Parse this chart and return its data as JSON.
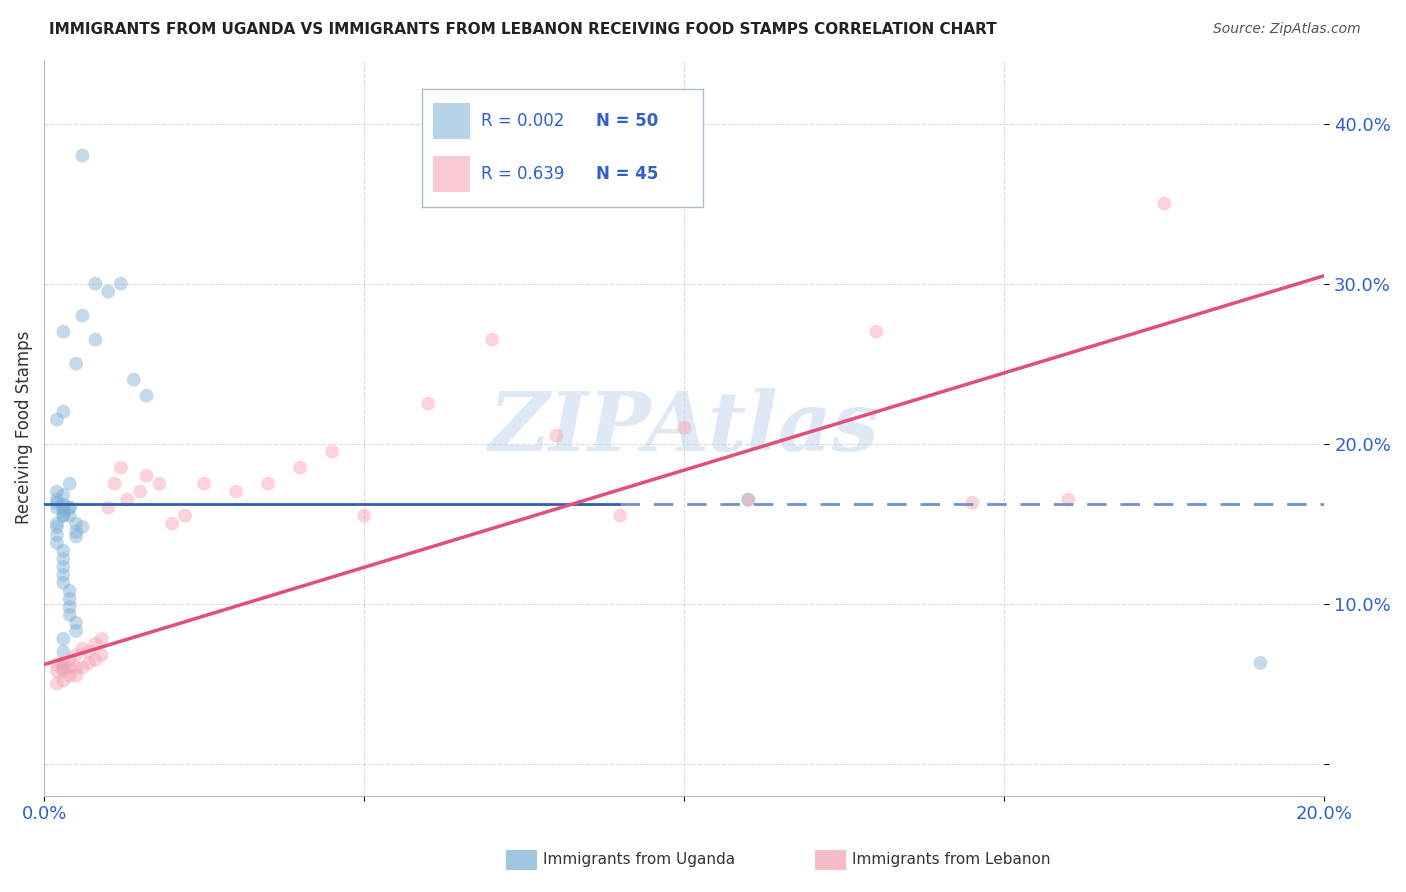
{
  "title": "IMMIGRANTS FROM UGANDA VS IMMIGRANTS FROM LEBANON RECEIVING FOOD STAMPS CORRELATION CHART",
  "source": "Source: ZipAtlas.com",
  "ylabel": "Receiving Food Stamps",
  "xlim": [
    0.0,
    0.2
  ],
  "ylim": [
    -0.02,
    0.44
  ],
  "ytick_vals": [
    0.0,
    0.1,
    0.2,
    0.3,
    0.4
  ],
  "ytick_labels": [
    "",
    "10.0%",
    "20.0%",
    "30.0%",
    "40.0%"
  ],
  "xtick_vals": [
    0.0,
    0.05,
    0.1,
    0.15,
    0.2
  ],
  "xtick_labels": [
    "0.0%",
    "",
    "",
    "",
    "20.0%"
  ],
  "uganda_color": "#7bafd4",
  "lebanon_color": "#f4a0b0",
  "trend_uganda_solid_color": "#3060b0",
  "trend_uganda_dash_color": "#7090d0",
  "trend_lebanon_color": "#e0507a",
  "watermark_text": "ZIPAtlas",
  "watermark_color": "#c5d8ee",
  "legend_r_val_color": "#3060cc",
  "legend_n_val_color": "#3060cc",
  "legend_uganda_r": "0.002",
  "legend_uganda_n": "50",
  "legend_lebanon_r": "0.639",
  "legend_lebanon_n": "45",
  "bg_color": "#ffffff",
  "grid_color": "#cccccc",
  "dot_size": 100,
  "dot_alpha": 0.45,
  "uganda_x": [
    0.006,
    0.006,
    0.008,
    0.01,
    0.012,
    0.008,
    0.014,
    0.016,
    0.005,
    0.003,
    0.002,
    0.003,
    0.003,
    0.002,
    0.004,
    0.002,
    0.002,
    0.002,
    0.003,
    0.003,
    0.003,
    0.004,
    0.004,
    0.005,
    0.005,
    0.006,
    0.005,
    0.004,
    0.003,
    0.003,
    0.002,
    0.002,
    0.002,
    0.002,
    0.003,
    0.003,
    0.003,
    0.003,
    0.003,
    0.004,
    0.004,
    0.004,
    0.004,
    0.005,
    0.005,
    0.003,
    0.003,
    0.003,
    0.11,
    0.19
  ],
  "uganda_y": [
    0.38,
    0.28,
    0.3,
    0.295,
    0.3,
    0.265,
    0.24,
    0.23,
    0.25,
    0.27,
    0.215,
    0.22,
    0.155,
    0.17,
    0.175,
    0.165,
    0.163,
    0.16,
    0.168,
    0.162,
    0.158,
    0.16,
    0.155,
    0.15,
    0.145,
    0.148,
    0.142,
    0.16,
    0.16,
    0.155,
    0.15,
    0.148,
    0.143,
    0.138,
    0.133,
    0.128,
    0.123,
    0.118,
    0.113,
    0.108,
    0.103,
    0.098,
    0.093,
    0.088,
    0.083,
    0.078,
    0.07,
    0.06,
    0.165,
    0.063
  ],
  "lebanon_x": [
    0.002,
    0.002,
    0.002,
    0.003,
    0.003,
    0.003,
    0.004,
    0.004,
    0.004,
    0.005,
    0.005,
    0.005,
    0.006,
    0.006,
    0.007,
    0.007,
    0.008,
    0.008,
    0.009,
    0.009,
    0.01,
    0.011,
    0.012,
    0.013,
    0.015,
    0.016,
    0.018,
    0.02,
    0.022,
    0.025,
    0.03,
    0.035,
    0.04,
    0.045,
    0.05,
    0.06,
    0.07,
    0.08,
    0.09,
    0.1,
    0.11,
    0.13,
    0.145,
    0.16,
    0.175
  ],
  "lebanon_y": [
    0.05,
    0.058,
    0.062,
    0.052,
    0.058,
    0.063,
    0.055,
    0.06,
    0.065,
    0.055,
    0.06,
    0.068,
    0.06,
    0.072,
    0.063,
    0.07,
    0.065,
    0.075,
    0.068,
    0.078,
    0.16,
    0.175,
    0.185,
    0.165,
    0.17,
    0.18,
    0.175,
    0.15,
    0.155,
    0.175,
    0.17,
    0.175,
    0.185,
    0.195,
    0.155,
    0.225,
    0.265,
    0.205,
    0.155,
    0.21,
    0.165,
    0.27,
    0.163,
    0.165,
    0.35
  ],
  "trend_uganda_y": 0.162,
  "trend_uganda_solid_end": 0.09,
  "trend_lebanon_x0": 0.0,
  "trend_lebanon_y0": 0.062,
  "trend_lebanon_x1": 0.2,
  "trend_lebanon_y1": 0.305
}
